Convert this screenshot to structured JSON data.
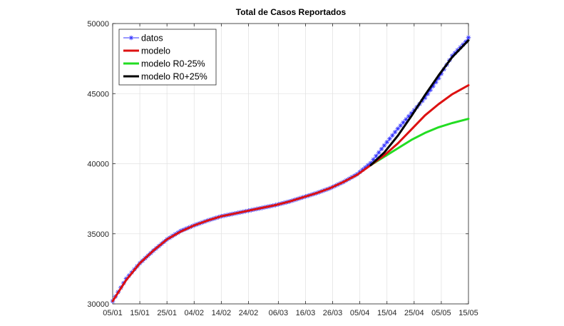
{
  "chart_data": {
    "type": "line",
    "title": "Total de Casos Reportados",
    "xlabel": "",
    "ylabel": "",
    "x_start": "05/01",
    "x_end": "15/05",
    "x_ticks": [
      "05/01",
      "15/01",
      "25/01",
      "04/02",
      "14/02",
      "24/02",
      "06/03",
      "16/03",
      "26/03",
      "05/04",
      "15/04",
      "25/04",
      "05/05",
      "15/05"
    ],
    "ylim": [
      30000,
      50000
    ],
    "y_ticks": [
      30000,
      35000,
      40000,
      45000,
      50000
    ],
    "grid": true,
    "legend_position": "top-left",
    "series": [
      {
        "name": "datos",
        "style": "markers-line",
        "color": "#3333ff",
        "marker": "asterisk",
        "x": [
          "05/01",
          "10/01",
          "15/01",
          "20/01",
          "25/01",
          "30/01",
          "04/02",
          "09/02",
          "14/02",
          "19/02",
          "24/02",
          "29/02",
          "05/03",
          "10/03",
          "15/03",
          "20/03",
          "25/03",
          "30/03",
          "04/04",
          "09/04",
          "14/04",
          "19/04",
          "24/04",
          "29/04",
          "04/05",
          "09/05",
          "14/05",
          "15/05"
        ],
        "values": [
          30200,
          31800,
          32900,
          33800,
          34600,
          35200,
          35600,
          35950,
          36250,
          36450,
          36650,
          36850,
          37050,
          37300,
          37600,
          37900,
          38250,
          38700,
          39250,
          40050,
          41300,
          42500,
          43600,
          44700,
          46100,
          47700,
          48700,
          49000
        ]
      },
      {
        "name": "modelo",
        "style": "line",
        "color": "#dd1111",
        "x": [
          "05/01",
          "10/01",
          "15/01",
          "20/01",
          "25/01",
          "30/01",
          "04/02",
          "09/02",
          "14/02",
          "19/02",
          "24/02",
          "29/02",
          "05/03",
          "10/03",
          "15/03",
          "20/03",
          "25/03",
          "30/03",
          "04/04",
          "09/04",
          "14/04",
          "19/04",
          "24/04",
          "29/04",
          "04/05",
          "09/05",
          "15/05"
        ],
        "values": [
          30200,
          31700,
          32900,
          33800,
          34600,
          35150,
          35600,
          35950,
          36250,
          36450,
          36650,
          36850,
          37050,
          37300,
          37600,
          37900,
          38250,
          38700,
          39200,
          39900,
          40600,
          41450,
          42450,
          43450,
          44250,
          44950,
          45600
        ]
      },
      {
        "name": "modelo R0-25%",
        "style": "line",
        "color": "#22dd22",
        "x": [
          "09/04",
          "14/04",
          "19/04",
          "24/04",
          "29/04",
          "04/05",
          "09/05",
          "15/05"
        ],
        "values": [
          39900,
          40500,
          41100,
          41700,
          42200,
          42600,
          42900,
          43200
        ]
      },
      {
        "name": "modelo R0+25%",
        "style": "line",
        "color": "#000000",
        "x": [
          "09/04",
          "14/04",
          "19/04",
          "24/04",
          "29/04",
          "04/05",
          "09/05",
          "15/05"
        ],
        "values": [
          39900,
          40800,
          42000,
          43400,
          44900,
          46300,
          47600,
          48800
        ]
      }
    ]
  }
}
